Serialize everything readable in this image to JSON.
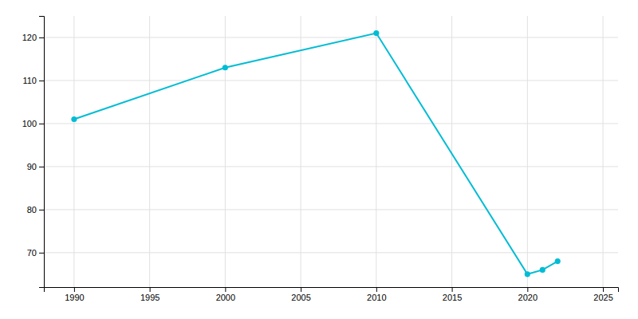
{
  "chart_data": {
    "type": "line",
    "x": [
      1990,
      2000,
      2010,
      2020,
      2021,
      2022
    ],
    "values": [
      101,
      113,
      121,
      65,
      66,
      68
    ],
    "color": "#00BCD4",
    "marker": "circle",
    "xlim": [
      1988,
      2026
    ],
    "ylim": [
      62,
      125
    ],
    "xticks": [
      1990,
      1995,
      2000,
      2005,
      2010,
      2015,
      2020,
      2025
    ],
    "yticks": [
      70,
      80,
      90,
      100,
      110,
      120
    ],
    "grid": true
  }
}
